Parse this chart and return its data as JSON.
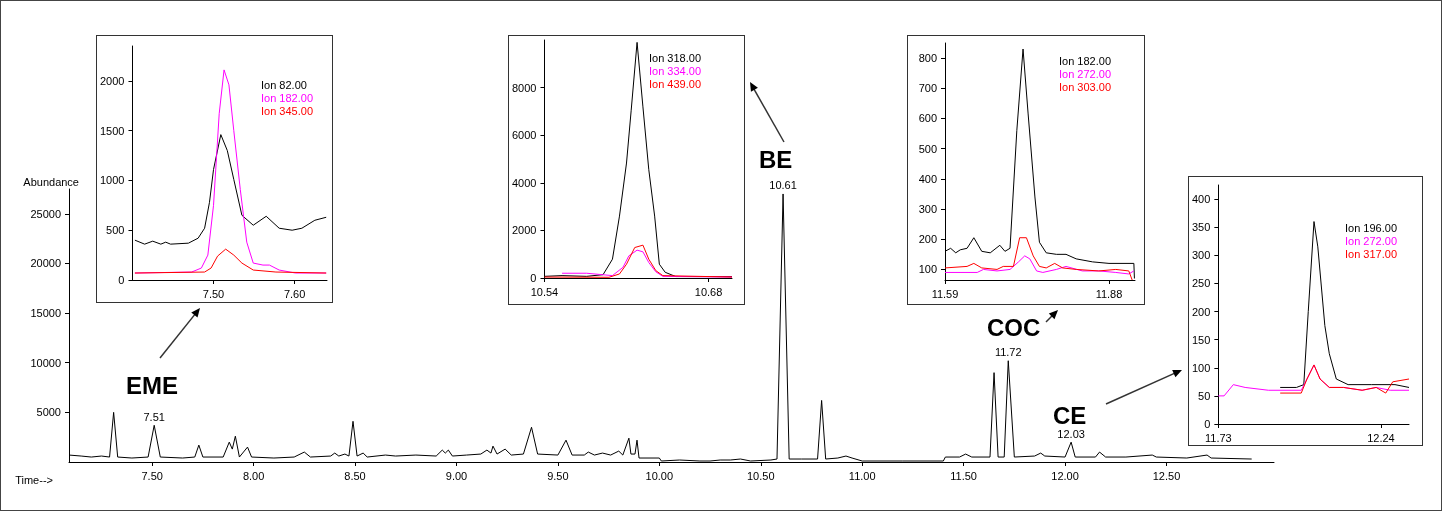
{
  "chart_data": [
    {
      "type": "line",
      "xlabel": "Time-->",
      "ylabel": "Abundance",
      "xlim": [
        7.09,
        13.03
      ],
      "ylim": [
        0,
        27500
      ],
      "xticks": [
        {
          "value": 7.5,
          "label": "7.50"
        },
        {
          "value": 8,
          "label": "8.00"
        },
        {
          "value": 8.5,
          "label": "8.50"
        },
        {
          "value": 9,
          "label": "9.00"
        },
        {
          "value": 9.5,
          "label": "9.50"
        },
        {
          "value": 10,
          "label": "10.00"
        },
        {
          "value": 10.5,
          "label": "10.50"
        },
        {
          "value": 11,
          "label": "11.00"
        },
        {
          "value": 11.5,
          "label": "11.50"
        },
        {
          "value": 12,
          "label": "12.00"
        },
        {
          "value": 12.5,
          "label": "12.50"
        }
      ],
      "yticks": [
        5000,
        10000,
        15000,
        20000,
        25000
      ],
      "grid": false,
      "legend": false,
      "marker": "none",
      "line_style": "solid",
      "series": [
        {
          "color": "#000000",
          "x": [
            7.09,
            7.15,
            7.2,
            7.25,
            7.29,
            7.31,
            7.33,
            7.4,
            7.48,
            7.51,
            7.54,
            7.65,
            7.71,
            7.73,
            7.75,
            7.85,
            7.88,
            7.895,
            7.91,
            7.93,
            7.97,
            7.99,
            8.1,
            8.2,
            8.25,
            8.28,
            8.38,
            8.4,
            8.42,
            8.45,
            8.47,
            8.49,
            8.51,
            8.54,
            8.56,
            8.65,
            8.7,
            8.8,
            8.9,
            8.93,
            8.945,
            8.96,
            8.98,
            9.05,
            9.12,
            9.15,
            9.17,
            9.18,
            9.2,
            9.24,
            9.27,
            9.33,
            9.37,
            9.4,
            9.5,
            9.54,
            9.57,
            9.63,
            9.65,
            9.68,
            9.72,
            9.76,
            9.8,
            9.82,
            9.85,
            9.86,
            9.88,
            9.89,
            9.9,
            10,
            10.01,
            10.1,
            10.2,
            10.25,
            10.3,
            10.35,
            10.4,
            10.45,
            10.55,
            10.58,
            10.61,
            10.64,
            10.7,
            10.78,
            10.8,
            10.82,
            10.88,
            10.92,
            10.95,
            11,
            11.2,
            11.4,
            11.41,
            11.48,
            11.51,
            11.54,
            11.63,
            11.65,
            11.67,
            11.7,
            11.72,
            11.75,
            11.85,
            11.88,
            11.9,
            12,
            12.03,
            12.05,
            12.15,
            12.17,
            12.2,
            12.3,
            12.43,
            12.45,
            12.6,
            12.7,
            12.72,
            12.92
          ],
          "values": [
            700,
            600,
            500,
            600,
            500,
            5000,
            500,
            400,
            500,
            3700,
            500,
            400,
            500,
            1700,
            500,
            500,
            2000,
            1300,
            2600,
            500,
            1500,
            500,
            400,
            500,
            1000,
            500,
            600,
            900,
            600,
            800,
            600,
            4100,
            600,
            900,
            500,
            700,
            600,
            700,
            600,
            1200,
            900,
            1200,
            600,
            700,
            800,
            1200,
            900,
            1600,
            800,
            1300,
            700,
            800,
            3500,
            800,
            700,
            2200,
            700,
            700,
            1000,
            700,
            900,
            700,
            1100,
            700,
            2400,
            800,
            800,
            2200,
            400,
            400,
            100,
            200,
            100,
            100,
            200,
            200,
            300,
            100,
            200,
            300,
            27000,
            300,
            300,
            300,
            6200,
            300,
            400,
            600,
            400,
            100,
            100,
            100,
            500,
            500,
            800,
            500,
            500,
            9000,
            500,
            500,
            10200,
            500,
            600,
            900,
            600,
            500,
            2000,
            500,
            500,
            1000,
            500,
            500,
            700,
            500,
            400,
            700,
            400,
            300
          ]
        }
      ],
      "annotations": [
        {
          "text": "7.51",
          "x": 7.51,
          "y": 3700
        },
        {
          "text": "10.61",
          "x": 10.61,
          "y": 27000
        },
        {
          "text": "11.72",
          "x": 11.72,
          "y": 10200
        },
        {
          "text": "12.03",
          "x": 12.03,
          "y": 2000
        },
        "EME",
        "BE",
        "COC",
        "CE"
      ]
    },
    {
      "type": "line",
      "xlim": [
        7.4,
        7.64
      ],
      "ylim": [
        0,
        2350
      ],
      "xticks": [
        {
          "value": 7.5,
          "label": "7.50"
        },
        {
          "value": 7.6,
          "label": "7.60"
        }
      ],
      "yticks": [
        0,
        500,
        1000,
        1500,
        2000
      ],
      "legend": "top right",
      "marker": "none",
      "series": [
        {
          "name": "Ion 82.00",
          "color": "#000000",
          "x": [
            7.403,
            7.415,
            7.425,
            7.435,
            7.441,
            7.447,
            7.469,
            7.481,
            7.489,
            7.495,
            7.5,
            7.509,
            7.517,
            7.525,
            7.535,
            7.549,
            7.565,
            7.581,
            7.597,
            7.609,
            7.625,
            7.639
          ],
          "values": [
            400,
            360,
            390,
            360,
            380,
            360,
            370,
            420,
            520,
            780,
            1110,
            1460,
            1300,
            1010,
            650,
            550,
            640,
            520,
            500,
            520,
            600,
            630
          ]
        },
        {
          "name": "Ion 182.00",
          "color": "#ff00ff",
          "x": [
            7.403,
            7.473,
            7.485,
            7.493,
            7.5,
            7.507,
            7.513,
            7.519,
            7.525,
            7.533,
            7.541,
            7.549,
            7.561,
            7.569,
            7.581,
            7.601,
            7.639
          ],
          "values": [
            70,
            80,
            120,
            250,
            750,
            1670,
            2110,
            1960,
            1500,
            910,
            380,
            170,
            150,
            150,
            100,
            70,
            70
          ]
        },
        {
          "name": "Ion 345.00",
          "color": "#ff0000",
          "x": [
            7.403,
            7.489,
            7.497,
            7.505,
            7.515,
            7.525,
            7.535,
            7.549,
            7.577,
            7.639
          ],
          "values": [
            70,
            80,
            120,
            240,
            310,
            250,
            170,
            100,
            80,
            70
          ]
        }
      ]
    },
    {
      "type": "line",
      "xlim": [
        10.54,
        10.7
      ],
      "ylim": [
        0,
        10000
      ],
      "xticks": [
        10.54,
        10.68
      ],
      "yticks": [
        0,
        2000,
        4000,
        6000,
        8000
      ],
      "legend": "top right",
      "marker": "none",
      "series": [
        {
          "name": "Ion 318.00",
          "color": "#000000",
          "x": [
            10.54,
            10.555,
            10.576,
            10.59,
            10.598,
            10.604,
            10.61,
            10.614,
            10.619,
            10.624,
            10.629,
            10.634,
            10.638,
            10.643,
            10.652,
            10.7
          ],
          "values": [
            70,
            100,
            70,
            140,
            790,
            2600,
            4830,
            7050,
            9900,
            7190,
            4550,
            2600,
            580,
            240,
            60,
            60
          ]
        },
        {
          "name": "Ion 334.00",
          "color": "#ff00ff",
          "x": [
            10.555,
            10.576,
            10.598,
            10.607,
            10.612,
            10.619,
            10.624,
            10.629,
            10.635,
            10.641,
            10.7
          ],
          "values": [
            200,
            200,
            100,
            450,
            930,
            1170,
            1100,
            650,
            260,
            70,
            40
          ]
        },
        {
          "name": "Ion 439.00",
          "color": "#ff0000",
          "x": [
            10.54,
            10.595,
            10.604,
            10.61,
            10.617,
            10.624,
            10.629,
            10.635,
            10.641,
            10.7
          ],
          "values": [
            40,
            30,
            170,
            580,
            1280,
            1380,
            790,
            310,
            100,
            40
          ]
        }
      ]
    },
    {
      "type": "line",
      "xlim": [
        11.59,
        11.926
      ],
      "ylim": [
        65,
        850
      ],
      "xticks": [
        11.59,
        11.88
      ],
      "yticks": [
        100,
        200,
        300,
        400,
        500,
        600,
        700,
        800
      ],
      "legend": "top right",
      "marker": "none",
      "series": [
        {
          "name": "Ion 182.00",
          "color": "#000000",
          "x": [
            11.59,
            11.6,
            11.609,
            11.617,
            11.629,
            11.641,
            11.655,
            11.67,
            11.687,
            11.696,
            11.705,
            11.717,
            11.728,
            11.737,
            11.749,
            11.757,
            11.769,
            11.787,
            11.804,
            11.822,
            11.851,
            11.88,
            11.924,
            11.925
          ],
          "values": [
            160,
            170,
            155,
            165,
            170,
            205,
            160,
            155,
            180,
            160,
            170,
            560,
            830,
            615,
            340,
            190,
            155,
            150,
            150,
            135,
            125,
            120,
            120,
            70
          ]
        },
        {
          "name": "Ion 272.00",
          "color": "#ff00ff",
          "x": [
            11.59,
            11.647,
            11.658,
            11.682,
            11.705,
            11.72,
            11.731,
            11.74,
            11.752,
            11.763,
            11.787,
            11.804,
            11.833,
            11.862,
            11.892,
            11.915,
            11.924
          ],
          "values": [
            90,
            90,
            100,
            95,
            100,
            125,
            145,
            135,
            95,
            90,
            100,
            110,
            95,
            95,
            90,
            85,
            95
          ]
        },
        {
          "name": "Ion 303.00",
          "color": "#ff0000",
          "x": [
            11.59,
            11.629,
            11.641,
            11.655,
            11.682,
            11.693,
            11.711,
            11.722,
            11.734,
            11.746,
            11.757,
            11.769,
            11.784,
            11.798,
            11.822,
            11.862,
            11.892,
            11.915,
            11.921
          ],
          "values": [
            105,
            110,
            120,
            105,
            100,
            110,
            110,
            205,
            205,
            145,
            110,
            105,
            120,
            105,
            100,
            95,
            100,
            95,
            65
          ]
        }
      ]
    },
    {
      "type": "line",
      "xlim": [
        11.73,
        12.328
      ],
      "ylim": [
        0,
        425
      ],
      "xticks": [
        11.73,
        12.24
      ],
      "yticks": [
        0,
        50,
        100,
        150,
        200,
        250,
        300,
        350,
        400
      ],
      "legend": "top right",
      "marker": "none",
      "series": [
        {
          "name": "Ion 196.00",
          "color": "#000000",
          "x": [
            11.924,
            11.975,
            11.998,
            12.012,
            12.03,
            12.042,
            12.064,
            12.078,
            12.1,
            12.137,
            12.211,
            12.284,
            12.328
          ],
          "values": [
            65,
            65,
            70,
            200,
            360,
            315,
            175,
            125,
            80,
            70,
            70,
            70,
            65
          ]
        },
        {
          "name": "Ion 272.00",
          "color": "#ff00ff",
          "x": [
            11.73,
            11.748,
            11.777,
            11.814,
            11.887,
            11.961,
            11.99,
            12.008,
            12.03,
            12.049,
            12.078,
            12.123,
            12.181,
            12.225,
            12.269,
            12.328
          ],
          "values": [
            50,
            50,
            70,
            65,
            60,
            60,
            60,
            80,
            105,
            80,
            65,
            65,
            60,
            65,
            60,
            60
          ]
        },
        {
          "name": "Ion 317.00",
          "color": "#ff0000",
          "x": [
            11.924,
            11.99,
            12.008,
            12.03,
            12.049,
            12.078,
            12.123,
            12.181,
            12.225,
            12.255,
            12.277,
            12.328
          ],
          "values": [
            55,
            55,
            80,
            105,
            80,
            65,
            65,
            60,
            65,
            55,
            75,
            80
          ]
        }
      ]
    }
  ]
}
